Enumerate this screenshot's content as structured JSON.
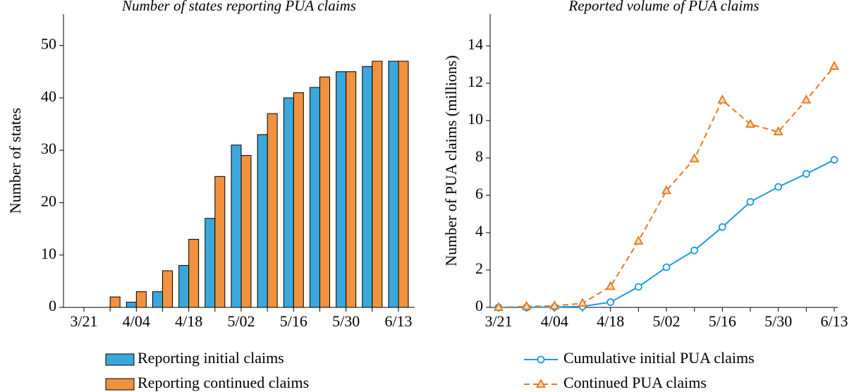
{
  "chart_data": [
    {
      "type": "bar",
      "title": "Number of states reporting PUA claims",
      "y_label": "Number of states",
      "categories": [
        "3/21",
        null,
        "4/04",
        null,
        "4/18",
        null,
        "5/02",
        null,
        "5/16",
        null,
        "5/30",
        null,
        "6/13"
      ],
      "series": [
        {
          "name": "Reporting initial claims",
          "color": "#3ba8dc",
          "values": [
            0,
            0,
            1,
            3,
            8,
            17,
            31,
            33,
            40,
            42,
            45,
            46,
            47
          ]
        },
        {
          "name": "Reporting continued claims",
          "color": "#f0923e",
          "values": [
            0,
            2,
            3,
            7,
            13,
            25,
            29,
            37,
            41,
            44,
            45,
            47,
            47
          ]
        }
      ],
      "ylim": [
        0,
        56
      ],
      "yticks": [
        0,
        10,
        20,
        30,
        40,
        50
      ]
    },
    {
      "type": "line",
      "title": "Reported volume of PUA claims",
      "y_label": "Number of PUA claims (millions)",
      "categories": [
        "3/21",
        null,
        "4/04",
        null,
        "4/18",
        null,
        "5/02",
        null,
        "5/16",
        null,
        "5/30",
        null,
        "6/13"
      ],
      "series": [
        {
          "name": "Cumulative initial PUA claims",
          "color": "#1b9bd8",
          "marker": "circle",
          "dash": false,
          "values": [
            0,
            0,
            0.02,
            0.05,
            0.28,
            1.1,
            2.15,
            3.05,
            4.3,
            5.65,
            6.45,
            7.15,
            7.9
          ]
        },
        {
          "name": "Continued PUA claims",
          "color": "#e8781e",
          "marker": "triangle",
          "dash": true,
          "values": [
            0,
            0.05,
            0.08,
            0.22,
            1.12,
            3.55,
            6.25,
            7.95,
            11.1,
            9.8,
            9.4,
            11.1,
            12.9
          ]
        }
      ],
      "ylim": [
        0,
        15.7
      ],
      "yticks": [
        0,
        2,
        4,
        6,
        8,
        10,
        12,
        14
      ]
    }
  ]
}
